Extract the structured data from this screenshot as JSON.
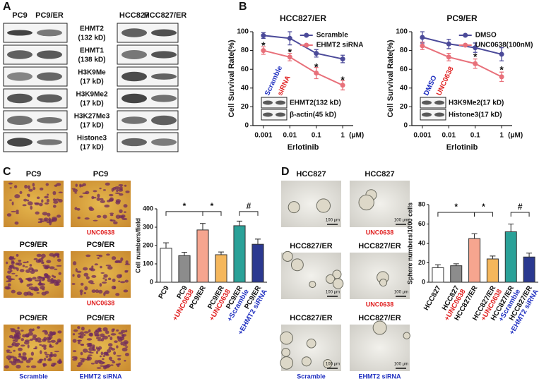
{
  "panel_labels": [
    "A",
    "B",
    "C",
    "D"
  ],
  "panel_a": {
    "left_lanes": [
      "PC9",
      "PC9/ER"
    ],
    "right_lanes": [
      "HCC827",
      "HCC827/ER"
    ],
    "proteins": [
      {
        "name": "EHMT2",
        "weight": "(132 kD)"
      },
      {
        "name": "EHMT1",
        "weight": "(138 kD)"
      },
      {
        "name": "H3K9Me",
        "weight": "(17 kD)"
      },
      {
        "name": "H3K9Me2",
        "weight": "(17 kD)"
      },
      {
        "name": "H3K27Me3",
        "weight": "(17 kD)"
      },
      {
        "name": "Histone3",
        "weight": "(17 kD)"
      }
    ]
  },
  "panel_c_images": [
    {
      "title": "PC9"
    },
    {
      "title": "PC9",
      "treatment": "UNC0638",
      "treatment_color": "#e02020"
    },
    {
      "title": "PC9/ER"
    },
    {
      "title": "PC9/ER",
      "treatment": "UNC0638",
      "treatment_color": "#e02020"
    },
    {
      "title": "PC9/ER",
      "treatment": "Scramble",
      "treatment_color": "#2030c0"
    },
    {
      "title": "PC9/ER",
      "treatment": "EHMT2 siRNA",
      "treatment_color": "#2030c0"
    }
  ],
  "panel_d_images": {
    "scale_bar": "100 μm",
    "images": [
      {
        "title": "HCC827"
      },
      {
        "title": "HCC827",
        "treatment": "UNC0638",
        "treatment_color": "#e02020"
      },
      {
        "title": "HCC827/ER"
      },
      {
        "title": "HCC827/ER",
        "treatment": "UNC0638",
        "treatment_color": "#e02020"
      },
      {
        "title": "HCC827/ER",
        "treatment": "Scramble",
        "treatment_color": "#2030c0"
      },
      {
        "title": "HCC827/ER",
        "treatment": "EHMT2 siRNA",
        "treatment_color": "#2030c0"
      }
    ]
  },
  "chart_data": [
    {
      "type": "line",
      "title": "HCC827/ER",
      "xlabel": "Erlotinib",
      "x_unit": "(μM)",
      "ylabel": "Cell Survival Rate(%)",
      "x": [
        0.001,
        0.01,
        0.1,
        1
      ],
      "xscale": "log",
      "xlim": [
        0.0004,
        2.5
      ],
      "xticks": [
        0.001,
        0.01,
        0.1,
        1
      ],
      "ylim": [
        0,
        100
      ],
      "yticks": [
        0,
        20,
        40,
        60,
        80,
        100
      ],
      "series": [
        {
          "name": "Scramble",
          "color": "#4b4a99",
          "values": [
            96,
            93,
            77,
            71
          ],
          "errors": [
            3,
            7,
            4,
            4
          ]
        },
        {
          "name": "EHMT2 siRNA",
          "color": "#e8707a",
          "values": [
            80,
            73,
            56,
            43
          ],
          "errors": [
            4,
            4,
            6,
            5
          ]
        }
      ],
      "annotations": [
        {
          "text": "*",
          "x": 0.001,
          "y": 87
        },
        {
          "text": "*",
          "x": 0.01,
          "y": 80
        },
        {
          "text": "*",
          "x": 0.1,
          "y": 64
        },
        {
          "text": "*",
          "x": 1,
          "y": 50
        }
      ],
      "inset": {
        "lanes": [
          {
            "label": "Scramble",
            "color": "#2030c0"
          },
          {
            "label": "siRNA",
            "color": "#e02020"
          }
        ],
        "bands": [
          "EHMT2(132 kD)",
          "β-actin(45 kD)"
        ]
      }
    },
    {
      "type": "line",
      "title": "PC9/ER",
      "xlabel": "Erlotinib",
      "x_unit": "(μM)",
      "ylabel": "Cell Survival Rate(%)",
      "x": [
        0.001,
        0.01,
        0.1,
        1
      ],
      "xscale": "log",
      "xlim": [
        0.0004,
        2.5
      ],
      "xticks": [
        0.001,
        0.01,
        0.1,
        1
      ],
      "ylim": [
        0,
        100
      ],
      "yticks": [
        0,
        20,
        40,
        60,
        80,
        100
      ],
      "series": [
        {
          "name": "DMSO",
          "color": "#4b4a99",
          "values": [
            94,
            87,
            83,
            76
          ],
          "errors": [
            6,
            5,
            5,
            7
          ]
        },
        {
          "name": "UNC0638(100nM)",
          "color": "#e8707a",
          "values": [
            85,
            73,
            66,
            52
          ],
          "errors": [
            4,
            4,
            5,
            5
          ]
        }
      ],
      "annotations": [
        {
          "text": "*",
          "x": 0.1,
          "y": 75
        },
        {
          "text": "*",
          "x": 1,
          "y": 61
        }
      ],
      "inset": {
        "lanes": [
          {
            "label": "DMSO",
            "color": "#2030c0"
          },
          {
            "label": "UNC0638",
            "color": "#e02020"
          }
        ],
        "bands": [
          "H3K9Me2(17 kD)",
          "Histone3(17 kD)"
        ]
      }
    },
    {
      "type": "bar",
      "ylabel": "Cell numbers/field",
      "categories": [
        "PC9",
        "PC9",
        "PC9/ER",
        "PC9/ER",
        "PC9/ER",
        "PC9/ER"
      ],
      "treatments": [
        null,
        "+UNC0638",
        null,
        "+UNC0638",
        "+Scramble",
        "+EHMT2 siRNA"
      ],
      "treatment_colors": [
        null,
        "#e02020",
        null,
        "#e02020",
        "#2030c0",
        "#2030c0"
      ],
      "values": [
        185,
        145,
        285,
        150,
        308,
        207
      ],
      "errors": [
        30,
        18,
        35,
        15,
        25,
        28
      ],
      "colors": [
        "#ffffff",
        "#8c8c8c",
        "#f6a58f",
        "#f5b75c",
        "#2aa198",
        "#2b3990"
      ],
      "ylim": [
        0,
        400
      ],
      "yticks": [
        0,
        100,
        200,
        300,
        400
      ],
      "brackets": [
        {
          "label": "*",
          "from": 0,
          "to": 2,
          "y": 385
        },
        {
          "label": "*",
          "from": 2,
          "to": 3,
          "y": 385
        },
        {
          "label": "#",
          "from": 4,
          "to": 5,
          "y": 385
        }
      ]
    },
    {
      "type": "bar",
      "ylabel": "Sphere numbers/1000 cells",
      "categories": [
        "HCC827",
        "HCC827",
        "HCC827/ER",
        "HCC827/ER",
        "HCC827/ER",
        "HCC827/ER"
      ],
      "treatments": [
        null,
        "+UNC0638",
        null,
        "+UNC0638",
        "+Scramble",
        "+EHMT2 siRNA"
      ],
      "treatment_colors": [
        null,
        "#e02020",
        null,
        "#e02020",
        "#2030c0",
        "#2030c0"
      ],
      "values": [
        15,
        17,
        45,
        24,
        52,
        26
      ],
      "errors": [
        3,
        2,
        5,
        3,
        8,
        4
      ],
      "colors": [
        "#ffffff",
        "#8c8c8c",
        "#f6a58f",
        "#f5b75c",
        "#2aa198",
        "#2b3990"
      ],
      "ylim": [
        0,
        80
      ],
      "yticks": [
        0,
        20,
        40,
        60,
        80
      ],
      "brackets": [
        {
          "label": "*",
          "from": 0,
          "to": 2,
          "y": 72
        },
        {
          "label": "*",
          "from": 2,
          "to": 3,
          "y": 72
        },
        {
          "label": "#",
          "from": 4,
          "to": 5,
          "y": 72
        }
      ]
    }
  ]
}
